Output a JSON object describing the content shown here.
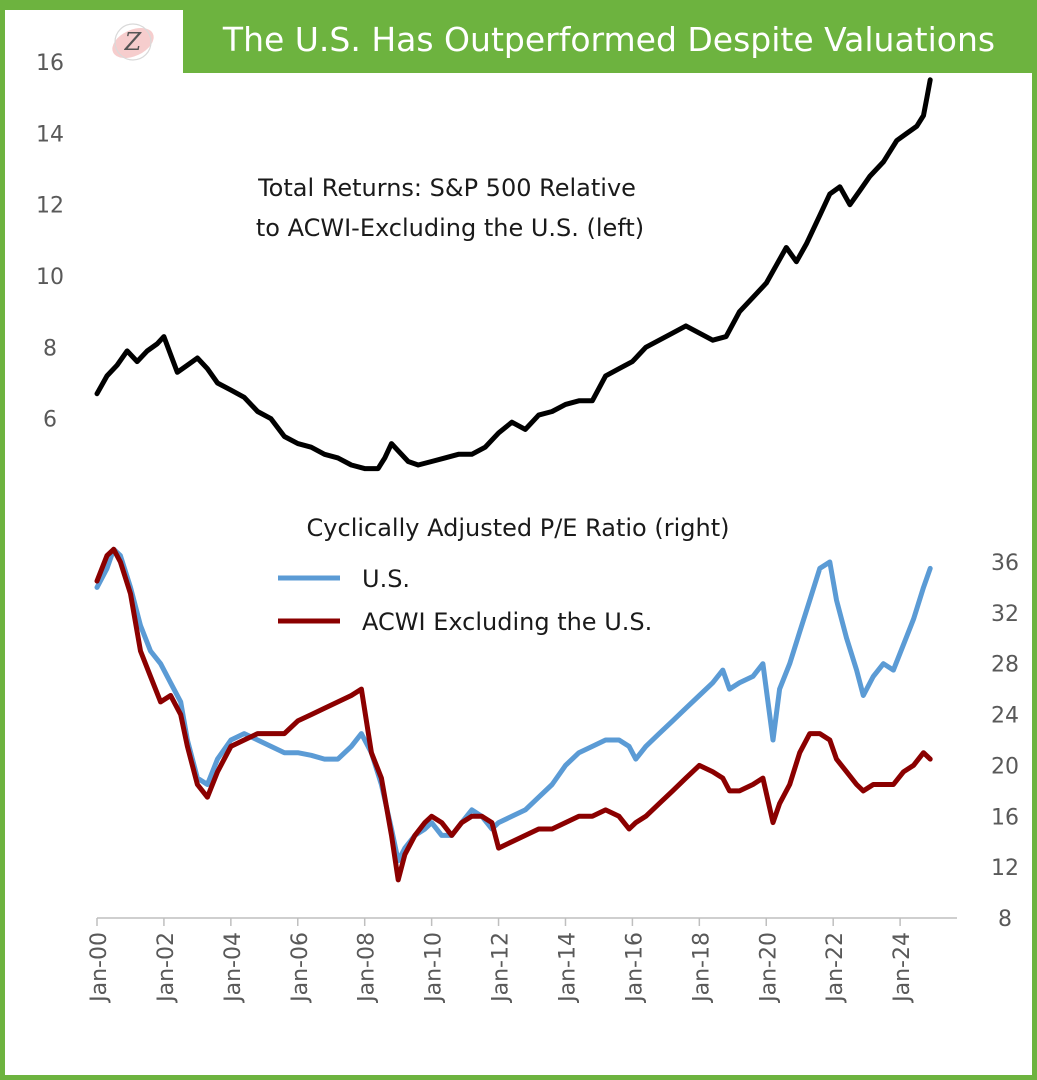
{
  "header": {
    "title": "The U.S. Has Outperformed Despite Valuations"
  },
  "colors": {
    "frame": "#6db33f",
    "sp_line": "#000000",
    "us_line": "#5b9bd5",
    "acwi_line": "#8b0000",
    "logo": "#e8a0a0"
  },
  "logo": {
    "letter": "Z"
  },
  "chart_data": {
    "type": "line",
    "x_axis": {
      "ticks": [
        "Jan-00",
        "Jan-02",
        "Jan-04",
        "Jan-06",
        "Jan-08",
        "Jan-10",
        "Jan-12",
        "Jan-14",
        "Jan-16",
        "Jan-18",
        "Jan-20",
        "Jan-22",
        "Jan-24"
      ],
      "range": [
        2000.0,
        2025.7
      ]
    },
    "left_axis": {
      "ticks": [
        "6",
        "8",
        "10",
        "12",
        "14",
        "16"
      ],
      "range": [
        4.0,
        16.0
      ]
    },
    "right_axis": {
      "ticks": [
        "8",
        "12",
        "16",
        "20",
        "24",
        "28",
        "32",
        "36"
      ],
      "range": [
        8,
        36
      ]
    },
    "annotations": {
      "total_returns_line1": "Total Returns: S&P 500 Relative",
      "total_returns_line2": "to ACWI-Excluding the U.S. (left)",
      "cape_title": "Cyclically Adjusted P/E Ratio (right)"
    },
    "legend": [
      "U.S.",
      "ACWI Excluding the U.S."
    ],
    "series": [
      {
        "name": "Total Returns: S&P 500 Relative to ACWI-Excluding the U.S. (left)",
        "axis": "left",
        "color": "#000000",
        "x": [
          2000.0,
          2000.3,
          2000.6,
          2000.9,
          2001.2,
          2001.5,
          2001.8,
          2002.0,
          2002.2,
          2002.4,
          2002.7,
          2003.0,
          2003.3,
          2003.6,
          2004.0,
          2004.4,
          2004.8,
          2005.2,
          2005.6,
          2006.0,
          2006.4,
          2006.8,
          2007.2,
          2007.6,
          2008.0,
          2008.4,
          2008.6,
          2008.8,
          2009.0,
          2009.3,
          2009.6,
          2010.0,
          2010.4,
          2010.8,
          2011.2,
          2011.6,
          2012.0,
          2012.4,
          2012.8,
          2013.2,
          2013.6,
          2014.0,
          2014.4,
          2014.8,
          2015.2,
          2015.6,
          2016.0,
          2016.4,
          2016.8,
          2017.2,
          2017.6,
          2018.0,
          2018.4,
          2018.8,
          2019.2,
          2019.6,
          2020.0,
          2020.3,
          2020.6,
          2020.9,
          2021.2,
          2021.6,
          2021.9,
          2022.2,
          2022.5,
          2022.8,
          2023.1,
          2023.5,
          2023.9,
          2024.2,
          2024.5,
          2024.7,
          2024.8,
          2024.9
        ],
        "y": [
          6.7,
          7.2,
          7.5,
          7.9,
          7.6,
          7.9,
          8.1,
          8.3,
          7.8,
          7.3,
          7.5,
          7.7,
          7.4,
          7.0,
          6.8,
          6.6,
          6.2,
          6.0,
          5.5,
          5.3,
          5.2,
          5.0,
          4.9,
          4.7,
          4.6,
          4.6,
          4.9,
          5.3,
          5.1,
          4.8,
          4.7,
          4.8,
          4.9,
          5.0,
          5.0,
          5.2,
          5.6,
          5.9,
          5.7,
          6.1,
          6.2,
          6.4,
          6.5,
          6.5,
          7.2,
          7.4,
          7.6,
          8.0,
          8.2,
          8.4,
          8.6,
          8.4,
          8.2,
          8.3,
          9.0,
          9.4,
          9.8,
          10.3,
          10.8,
          10.4,
          10.9,
          11.7,
          12.3,
          12.5,
          12.0,
          12.4,
          12.8,
          13.2,
          13.8,
          14.0,
          14.2,
          14.5,
          15.0,
          15.5
        ]
      },
      {
        "name": "U.S.",
        "axis": "right",
        "color": "#5b9bd5",
        "x": [
          2000.0,
          2000.3,
          2000.5,
          2000.7,
          2001.0,
          2001.3,
          2001.6,
          2001.9,
          2002.2,
          2002.5,
          2002.7,
          2003.0,
          2003.3,
          2003.6,
          2004.0,
          2004.4,
          2004.8,
          2005.2,
          2005.6,
          2006.0,
          2006.4,
          2006.8,
          2007.2,
          2007.6,
          2007.9,
          2008.2,
          2008.5,
          2008.8,
          2009.0,
          2009.2,
          2009.5,
          2009.8,
          2010.0,
          2010.3,
          2010.6,
          2010.9,
          2011.2,
          2011.5,
          2011.8,
          2012.0,
          2012.4,
          2012.8,
          2013.2,
          2013.6,
          2014.0,
          2014.4,
          2014.8,
          2015.2,
          2015.6,
          2015.9,
          2016.1,
          2016.4,
          2016.8,
          2017.2,
          2017.6,
          2018.0,
          2018.4,
          2018.7,
          2018.9,
          2019.2,
          2019.6,
          2019.9,
          2020.2,
          2020.4,
          2020.7,
          2021.0,
          2021.3,
          2021.6,
          2021.9,
          2022.1,
          2022.4,
          2022.7,
          2022.9,
          2023.2,
          2023.5,
          2023.8,
          2024.1,
          2024.4,
          2024.7,
          2024.9
        ],
        "y": [
          34.0,
          35.5,
          37.0,
          36.5,
          34.0,
          31.0,
          29.0,
          28.0,
          26.5,
          25.0,
          22.0,
          19.0,
          18.5,
          20.5,
          22.0,
          22.5,
          22.0,
          21.5,
          21.0,
          21.0,
          20.8,
          20.5,
          20.5,
          21.5,
          22.5,
          21.0,
          18.5,
          15.0,
          12.5,
          13.5,
          14.5,
          15.0,
          15.5,
          14.5,
          14.5,
          15.5,
          16.5,
          16.0,
          15.0,
          15.5,
          16.0,
          16.5,
          17.5,
          18.5,
          20.0,
          21.0,
          21.5,
          22.0,
          22.0,
          21.5,
          20.5,
          21.5,
          22.5,
          23.5,
          24.5,
          25.5,
          26.5,
          27.5,
          26.0,
          26.5,
          27.0,
          28.0,
          22.0,
          26.0,
          28.0,
          30.5,
          33.0,
          35.5,
          36.0,
          33.0,
          30.0,
          27.5,
          25.5,
          27.0,
          28.0,
          27.5,
          29.5,
          31.5,
          34.0,
          35.5
        ]
      },
      {
        "name": "ACWI Excluding the U.S.",
        "axis": "right",
        "color": "#8b0000",
        "x": [
          2000.0,
          2000.3,
          2000.5,
          2000.7,
          2001.0,
          2001.3,
          2001.6,
          2001.9,
          2002.2,
          2002.5,
          2002.7,
          2003.0,
          2003.3,
          2003.6,
          2004.0,
          2004.4,
          2004.8,
          2005.2,
          2005.6,
          2006.0,
          2006.4,
          2006.8,
          2007.2,
          2007.6,
          2007.9,
          2008.2,
          2008.5,
          2008.8,
          2009.0,
          2009.2,
          2009.5,
          2009.8,
          2010.0,
          2010.3,
          2010.6,
          2010.9,
          2011.2,
          2011.5,
          2011.8,
          2012.0,
          2012.4,
          2012.8,
          2013.2,
          2013.6,
          2014.0,
          2014.4,
          2014.8,
          2015.2,
          2015.6,
          2015.9,
          2016.1,
          2016.4,
          2016.8,
          2017.2,
          2017.6,
          2018.0,
          2018.4,
          2018.7,
          2018.9,
          2019.2,
          2019.6,
          2019.9,
          2020.2,
          2020.4,
          2020.7,
          2021.0,
          2021.3,
          2021.6,
          2021.9,
          2022.1,
          2022.4,
          2022.7,
          2022.9,
          2023.2,
          2023.5,
          2023.8,
          2024.1,
          2024.4,
          2024.7,
          2024.9
        ],
        "y": [
          34.5,
          36.5,
          37.0,
          36.0,
          33.5,
          29.0,
          27.0,
          25.0,
          25.5,
          24.0,
          21.5,
          18.5,
          17.5,
          19.5,
          21.5,
          22.0,
          22.5,
          22.5,
          22.5,
          23.5,
          24.0,
          24.5,
          25.0,
          25.5,
          26.0,
          21.0,
          19.0,
          14.5,
          11.0,
          13.0,
          14.5,
          15.5,
          16.0,
          15.5,
          14.5,
          15.5,
          16.0,
          16.0,
          15.5,
          13.5,
          14.0,
          14.5,
          15.0,
          15.0,
          15.5,
          16.0,
          16.0,
          16.5,
          16.0,
          15.0,
          15.5,
          16.0,
          17.0,
          18.0,
          19.0,
          20.0,
          19.5,
          19.0,
          18.0,
          18.0,
          18.5,
          19.0,
          15.5,
          17.0,
          18.5,
          21.0,
          22.5,
          22.5,
          22.0,
          20.5,
          19.5,
          18.5,
          18.0,
          18.5,
          18.5,
          18.5,
          19.5,
          20.0,
          21.0,
          20.5
        ]
      }
    ]
  }
}
